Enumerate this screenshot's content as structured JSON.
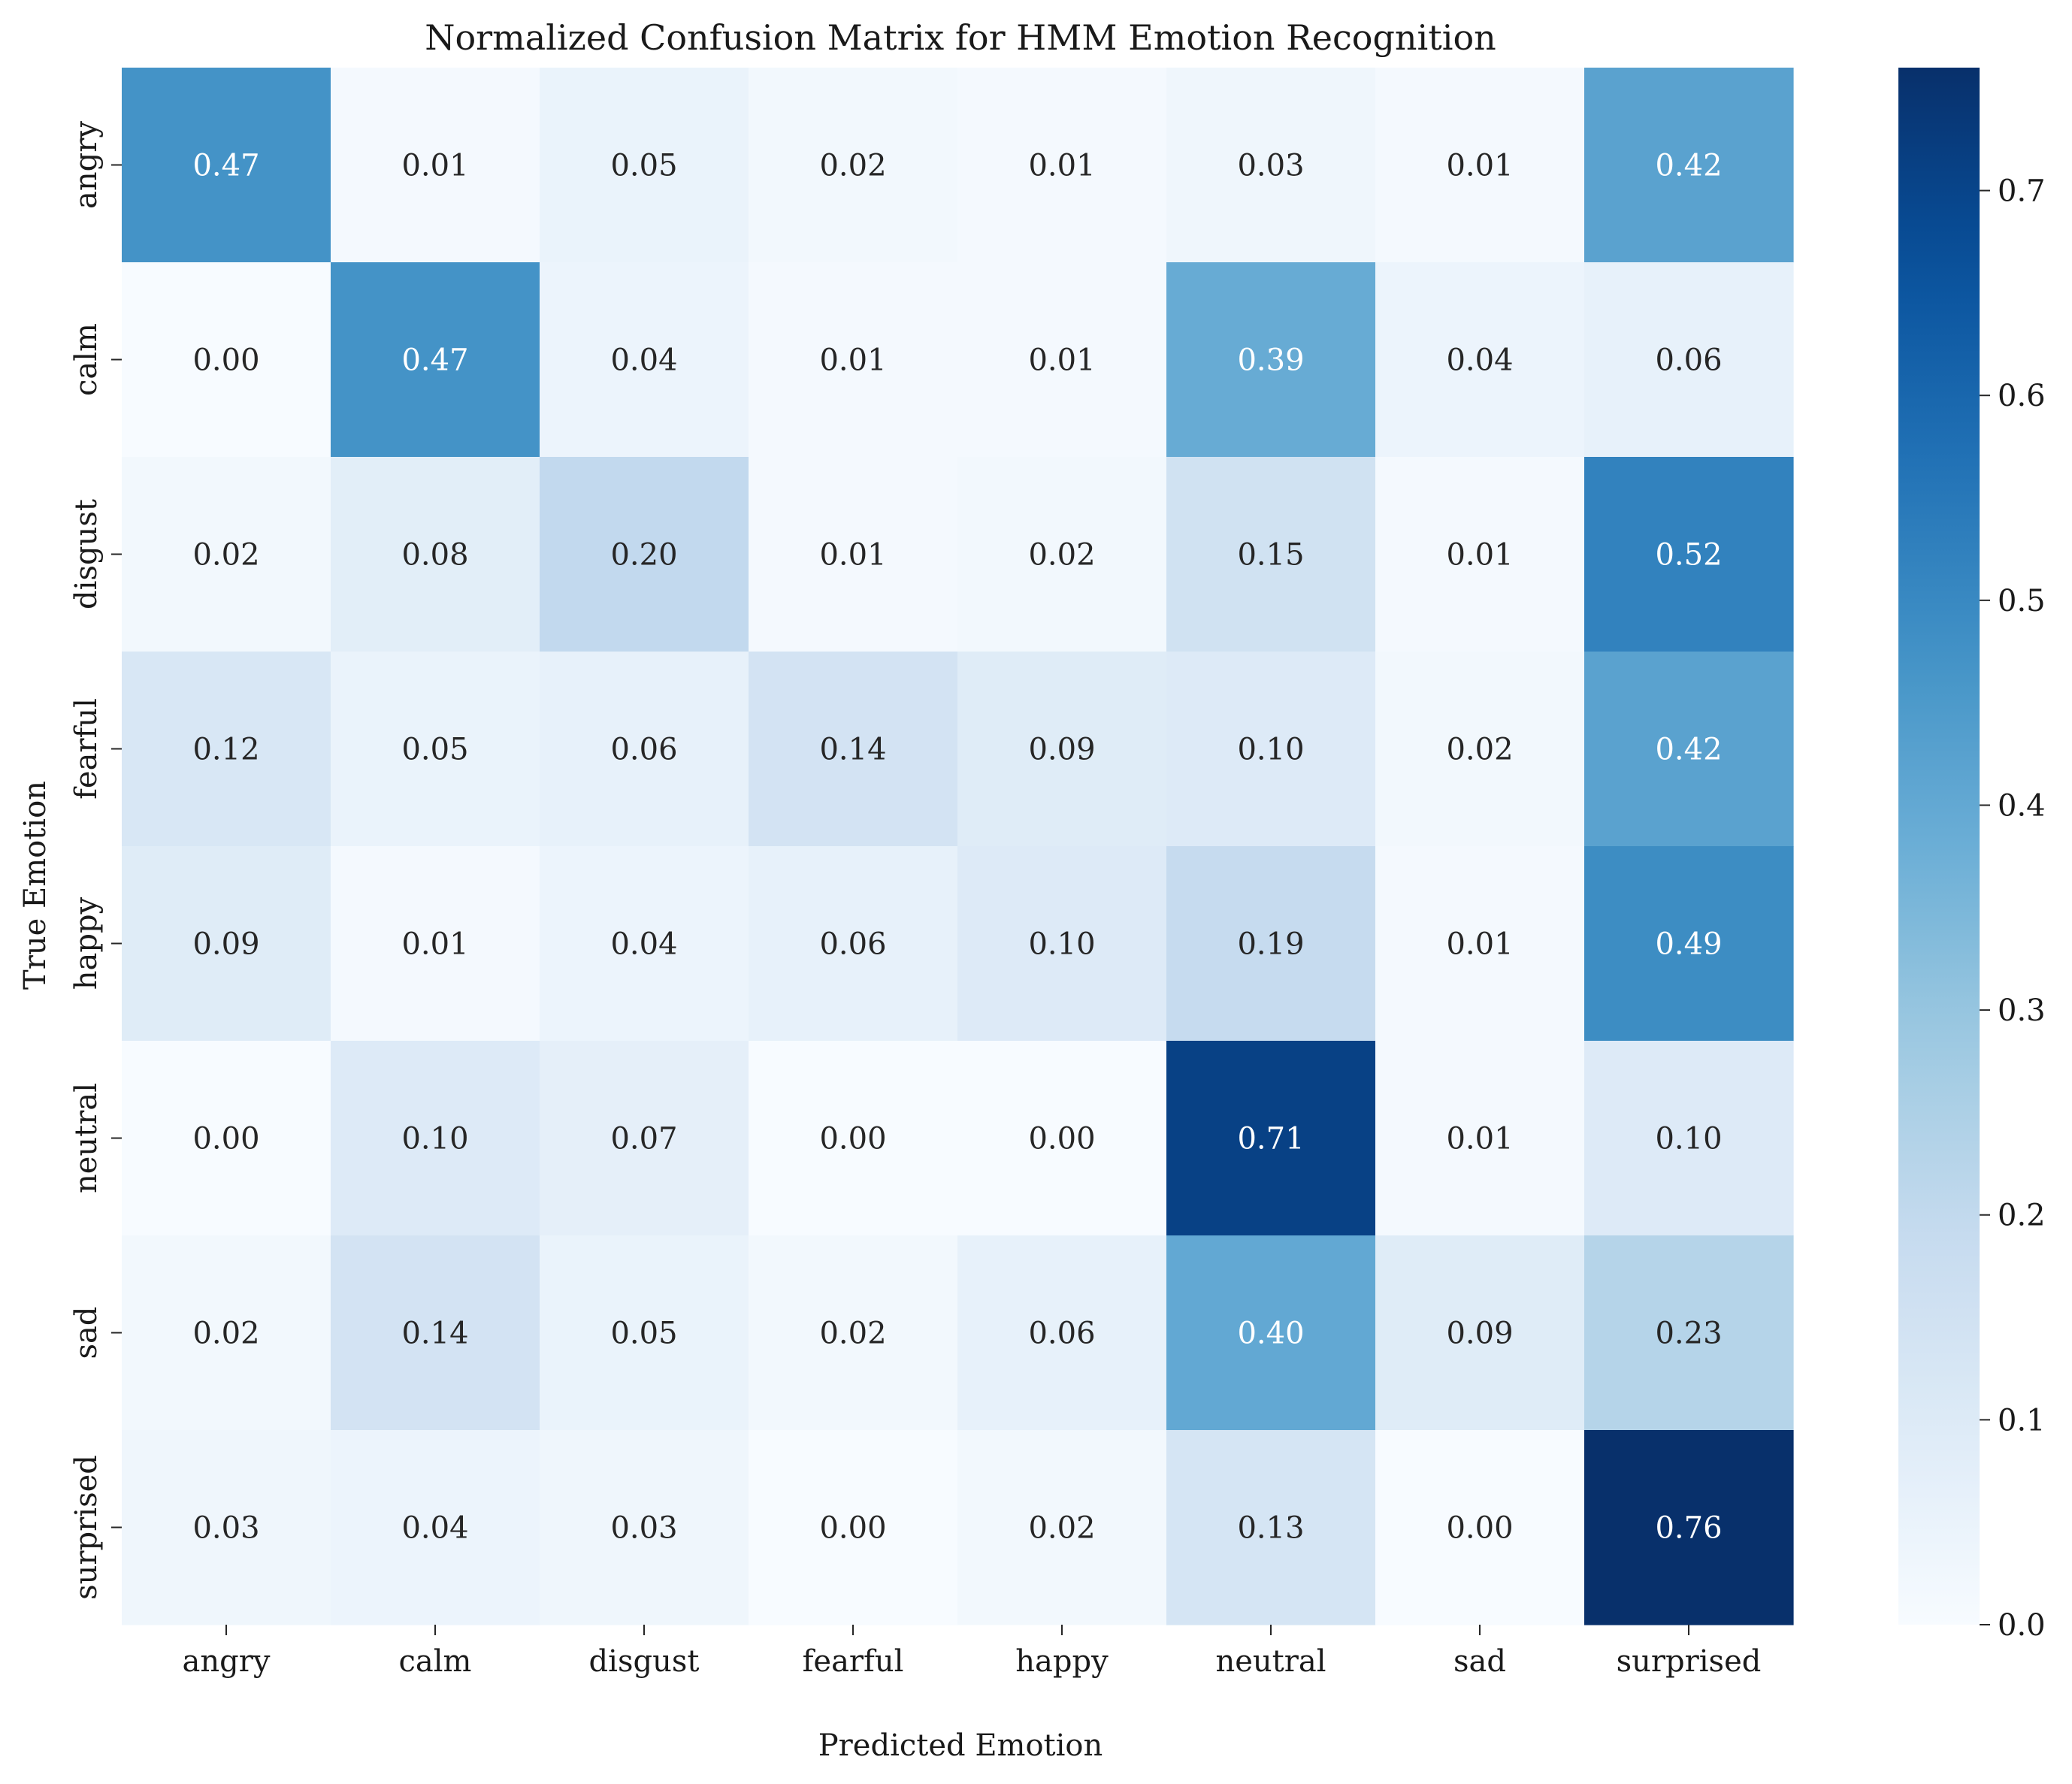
{
  "chart_data": {
    "type": "heatmap",
    "title": "Normalized Confusion Matrix for HMM Emotion Recognition",
    "xlabel": "Predicted Emotion",
    "ylabel": "True Emotion",
    "x_categories": [
      "angry",
      "calm",
      "disgust",
      "fearful",
      "happy",
      "neutral",
      "sad",
      "surprised"
    ],
    "y_categories": [
      "angry",
      "calm",
      "disgust",
      "fearful",
      "happy",
      "neutral",
      "sad",
      "surprised"
    ],
    "values": [
      [
        0.47,
        0.01,
        0.05,
        0.02,
        0.01,
        0.03,
        0.01,
        0.42
      ],
      [
        0.0,
        0.47,
        0.04,
        0.01,
        0.01,
        0.39,
        0.04,
        0.06
      ],
      [
        0.02,
        0.08,
        0.2,
        0.01,
        0.02,
        0.15,
        0.01,
        0.52
      ],
      [
        0.12,
        0.05,
        0.06,
        0.14,
        0.09,
        0.1,
        0.02,
        0.42
      ],
      [
        0.09,
        0.01,
        0.04,
        0.06,
        0.1,
        0.19,
        0.01,
        0.49
      ],
      [
        0.0,
        0.1,
        0.07,
        0.0,
        0.0,
        0.71,
        0.01,
        0.1
      ],
      [
        0.02,
        0.14,
        0.05,
        0.02,
        0.06,
        0.4,
        0.09,
        0.23
      ],
      [
        0.03,
        0.04,
        0.03,
        0.0,
        0.02,
        0.13,
        0.0,
        0.76
      ]
    ],
    "colormap": "Blues",
    "colorbar": {
      "range": [
        0.0,
        0.76
      ],
      "ticks": [
        0.0,
        0.1,
        0.2,
        0.3,
        0.4,
        0.5,
        0.6,
        0.7
      ]
    },
    "grid": false
  }
}
